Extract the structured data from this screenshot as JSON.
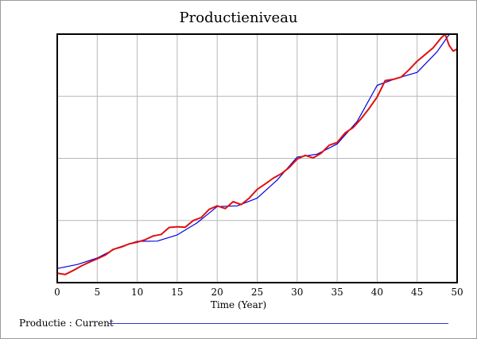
{
  "chart_data": {
    "type": "line",
    "title": "Productieniveau",
    "xlabel": "Time (Year)",
    "ylabel": "",
    "xlim": [
      0,
      50
    ],
    "ylim": [
      0,
      1
    ],
    "x_ticks": [
      "0",
      "5",
      "10",
      "15",
      "20",
      "25",
      "30",
      "35",
      "40",
      "45",
      "50"
    ],
    "grid": true,
    "legend_placement": "bottom",
    "series": [
      {
        "name": "Productie : Current",
        "color": "#0000e0",
        "x": [
          0,
          2.5,
          5,
          7.5,
          10,
          12.5,
          15,
          17.5,
          20,
          22.5,
          25,
          27.5,
          30,
          32.5,
          35,
          37.5,
          40,
          42.5,
          45,
          47.5,
          49
        ],
        "y": [
          0.057,
          0.073,
          0.099,
          0.14,
          0.166,
          0.167,
          0.192,
          0.241,
          0.306,
          0.309,
          0.34,
          0.413,
          0.505,
          0.517,
          0.558,
          0.649,
          0.794,
          0.823,
          0.846,
          0.929,
          0.998
        ]
      },
      {
        "color": "#e01010",
        "x": [
          0,
          1,
          2,
          3,
          4,
          5,
          6,
          7,
          8,
          9,
          10,
          11,
          12,
          13,
          14,
          15,
          16,
          17,
          18,
          19,
          20,
          21,
          22,
          23,
          24,
          25,
          26,
          27,
          28,
          29,
          30,
          31,
          32,
          33,
          34,
          35,
          36,
          37,
          38,
          39,
          40,
          41,
          42,
          43,
          44,
          45,
          46,
          47,
          48,
          48.5,
          49,
          49.5,
          50
        ],
        "y": [
          0.038,
          0.033,
          0.049,
          0.067,
          0.082,
          0.096,
          0.111,
          0.134,
          0.143,
          0.156,
          0.163,
          0.173,
          0.188,
          0.194,
          0.222,
          0.225,
          0.223,
          0.25,
          0.262,
          0.295,
          0.309,
          0.298,
          0.326,
          0.314,
          0.34,
          0.375,
          0.397,
          0.42,
          0.438,
          0.463,
          0.497,
          0.512,
          0.502,
          0.521,
          0.553,
          0.564,
          0.603,
          0.624,
          0.66,
          0.701,
          0.747,
          0.813,
          0.818,
          0.827,
          0.857,
          0.891,
          0.918,
          0.945,
          0.985,
          1.0,
          0.955,
          0.932,
          0.94
        ]
      }
    ]
  }
}
